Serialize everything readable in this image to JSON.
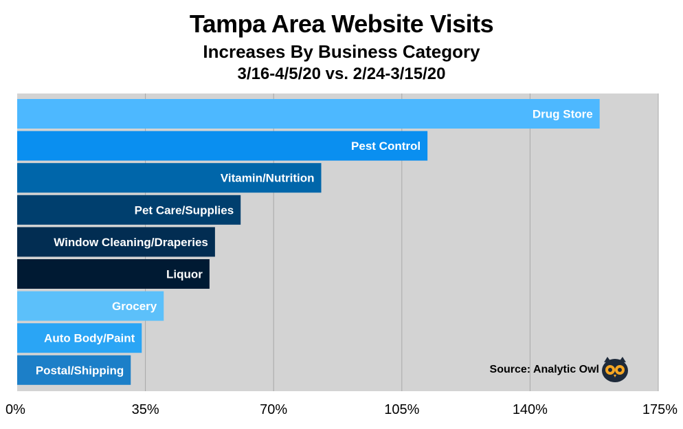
{
  "chart_data": {
    "type": "bar",
    "orientation": "horizontal",
    "title": "Tampa Area Website Visits",
    "subtitle": "Increases By Business Category",
    "subtitle2": "3/16-4/5/20 vs. 2/24-3/15/20",
    "categories": [
      "Drug Store",
      "Pest Control",
      "Vitamin/Nutrition",
      "Pet Care/Supplies",
      "Window Cleaning/Draperies",
      "Liquor",
      "Grocery",
      "Auto Body/Paint",
      "Postal/Shipping"
    ],
    "values": [
      159,
      112,
      83,
      61,
      54,
      52.5,
      40,
      34,
      31
    ],
    "bar_colors": [
      "#4db8ff",
      "#0a8ff0",
      "#0066aa",
      "#003f6e",
      "#022d52",
      "#001a33",
      "#5cc0fa",
      "#2aa5f5",
      "#1c7fc8"
    ],
    "xlim": [
      0,
      175
    ],
    "xticks": [
      "0%",
      "35%",
      "70%",
      "105%",
      "140%",
      "175%"
    ],
    "xtick_values": [
      0,
      35,
      70,
      105,
      140,
      175
    ],
    "grid": true,
    "plot_background": "#d3d3d3",
    "source": "Source: Analytic Owl"
  }
}
